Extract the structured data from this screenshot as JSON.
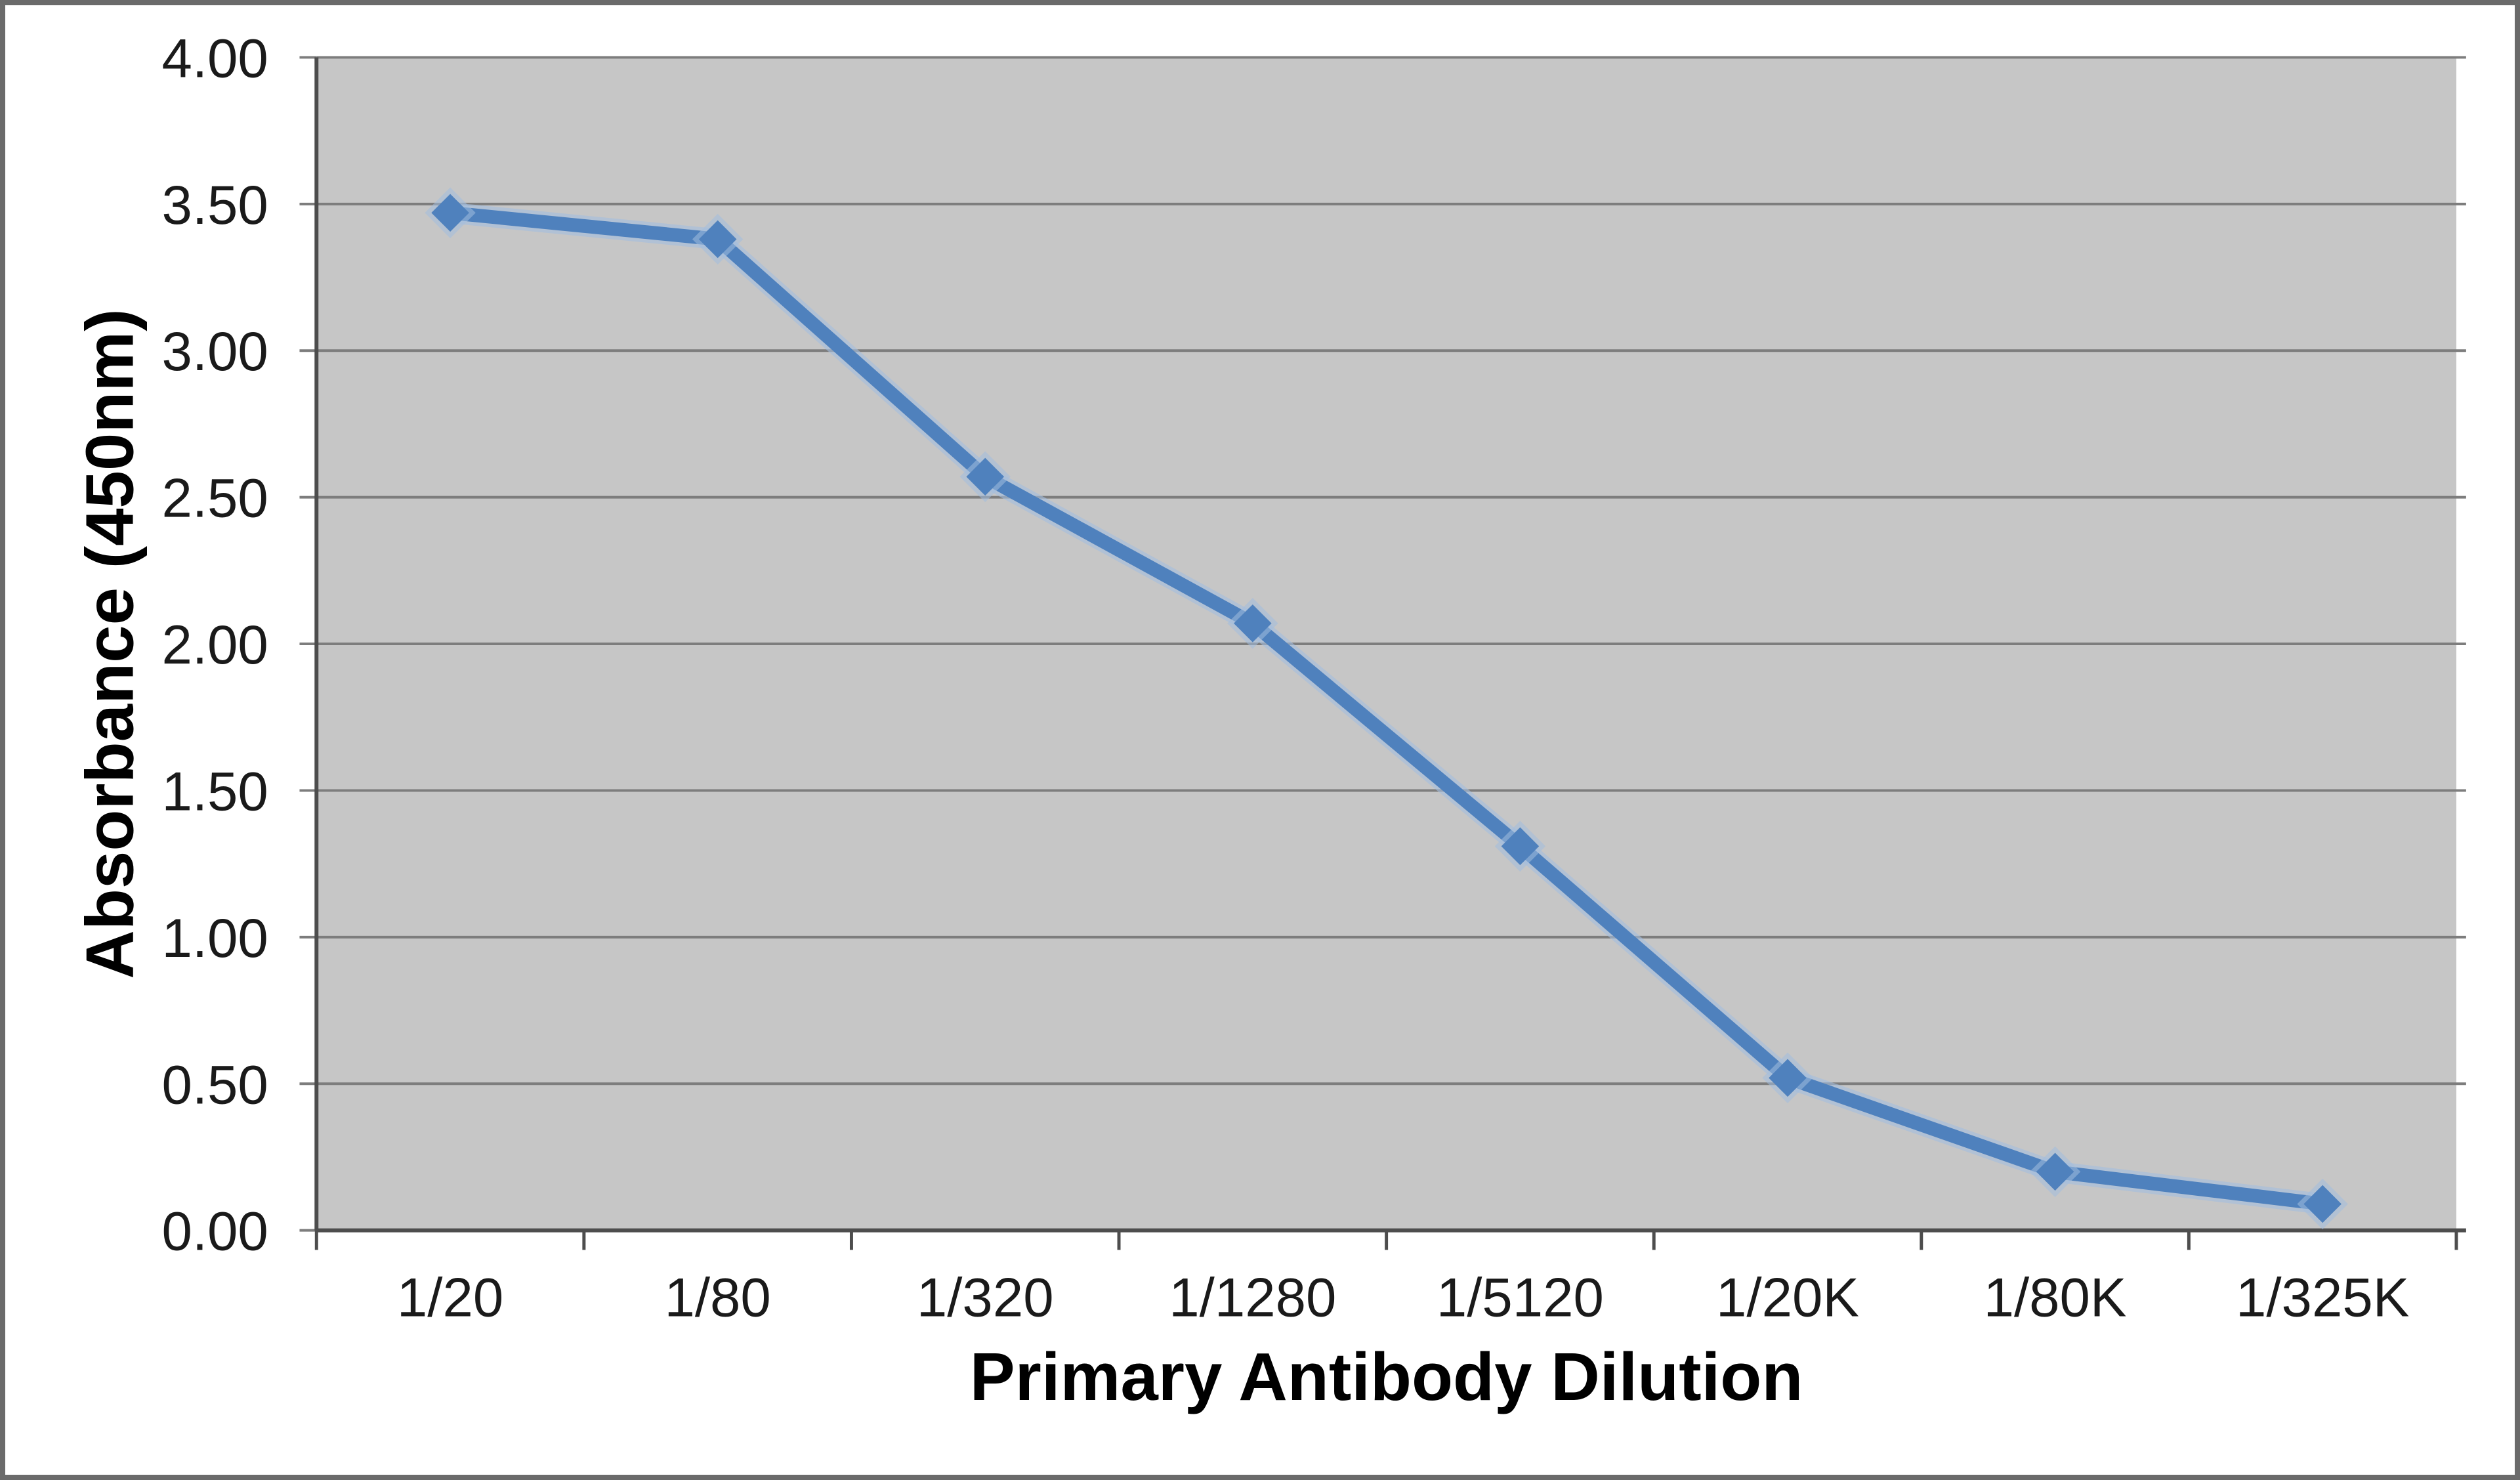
{
  "chart_data": {
    "type": "line",
    "title": "",
    "categories": [
      "1/20",
      "1/80",
      "1/320",
      "1/1280",
      "1/5120",
      "1/20K",
      "1/80K",
      "1/325K"
    ],
    "series": [
      {
        "name": "Absorbance (450nm)",
        "marker": "diamond",
        "values": [
          3.47,
          3.38,
          2.57,
          2.07,
          1.31,
          0.52,
          0.2,
          0.09
        ]
      }
    ],
    "xlabel": "Primary Antibody Dilution",
    "ylabel": "Absorbance (450nm)",
    "ylim": [
      0,
      4
    ],
    "ytick_step": 0.5,
    "ytick_labels": [
      "0.00",
      "0.50",
      "1.00",
      "1.50",
      "2.00",
      "2.50",
      "3.00",
      "3.50",
      "4.00"
    ],
    "grid": "horizontal",
    "legend": false
  },
  "colors": {
    "series_line": "#4f81bd",
    "series_halo": "#a3bedf",
    "plot_bg": "#c6c6c6",
    "gridline": "#7d7d7d",
    "axis_line": "#4d4d4d",
    "tick_text": "#1a1a1a",
    "frame_border": "#6b6b6b",
    "page_bg": "#ffffff"
  }
}
